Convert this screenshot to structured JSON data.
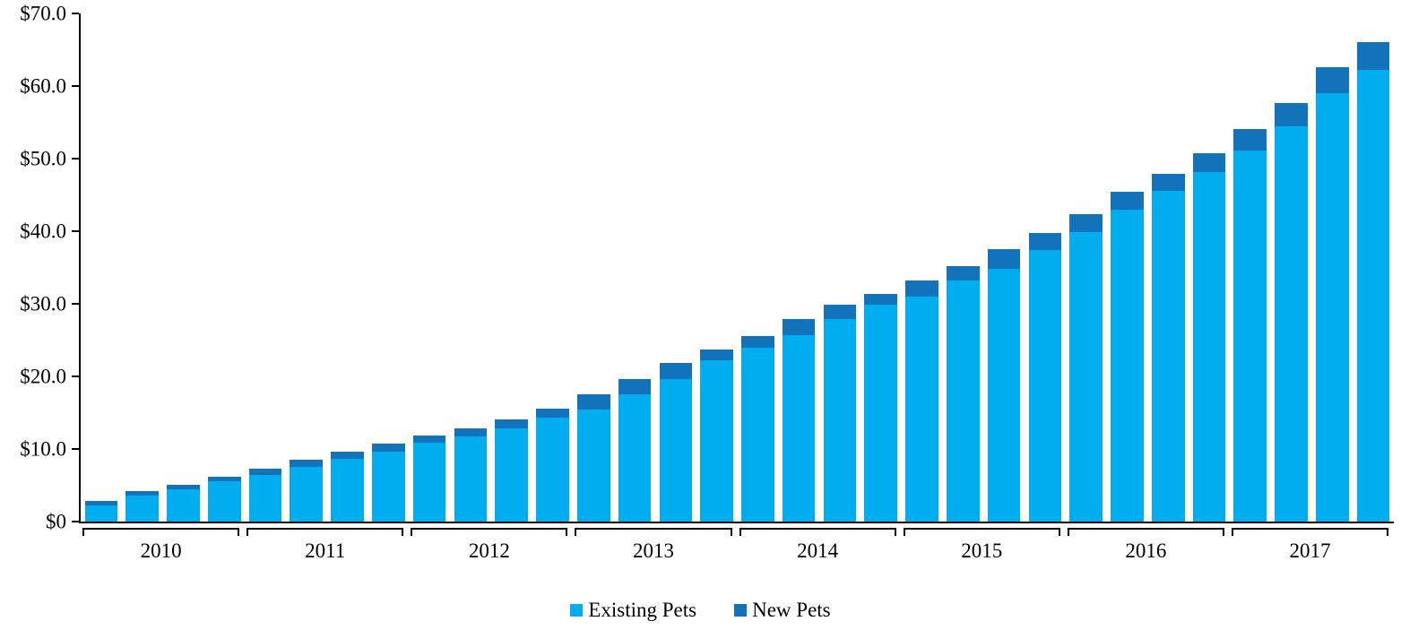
{
  "chart_data": {
    "type": "bar",
    "stacked": true,
    "title": "",
    "xlabel": "",
    "ylabel": "",
    "ylim": [
      0,
      70
    ],
    "grid": false,
    "legend_position": "bottom",
    "y_ticks": [
      {
        "label": "$70.0",
        "value": 70
      },
      {
        "label": "$60.0",
        "value": 60
      },
      {
        "label": "$50.0",
        "value": 50
      },
      {
        "label": "$40.0",
        "value": 40
      },
      {
        "label": "$30.0",
        "value": 30
      },
      {
        "label": "$20.0",
        "value": 20
      },
      {
        "label": "$10.0",
        "value": 10
      },
      {
        "label": "$0",
        "value": 0
      }
    ],
    "year_groups": [
      "2010",
      "2011",
      "2012",
      "2013",
      "2014",
      "2015",
      "2016",
      "2017"
    ],
    "bars_per_year": 4,
    "categories": [
      "2010-Q1",
      "2010-Q2",
      "2010-Q3",
      "2010-Q4",
      "2011-Q1",
      "2011-Q2",
      "2011-Q3",
      "2011-Q4",
      "2012-Q1",
      "2012-Q2",
      "2012-Q3",
      "2012-Q4",
      "2013-Q1",
      "2013-Q2",
      "2013-Q3",
      "2013-Q4",
      "2014-Q1",
      "2014-Q2",
      "2014-Q3",
      "2014-Q4",
      "2015-Q1",
      "2015-Q2",
      "2015-Q3",
      "2015-Q4",
      "2016-Q1",
      "2016-Q2",
      "2016-Q3",
      "2016-Q4",
      "2017-Q1",
      "2017-Q2",
      "2017-Q3",
      "2017-Q4"
    ],
    "series": [
      {
        "name": "Existing Pets",
        "color": "#00AEEF",
        "values": [
          2.2,
          3.6,
          4.5,
          5.5,
          6.4,
          7.5,
          8.6,
          9.6,
          10.9,
          11.7,
          12.9,
          14.3,
          15.4,
          17.5,
          19.6,
          22.2,
          24.0,
          25.7,
          27.9,
          29.9,
          31.0,
          33.2,
          34.8,
          37.4,
          39.9,
          43.0,
          45.5,
          48.1,
          51.1,
          54.5,
          59.0,
          62.2
        ]
      },
      {
        "name": "New Pets",
        "color": "#1272BA",
        "values": [
          0.7,
          0.6,
          0.6,
          0.7,
          0.9,
          1.0,
          1.0,
          1.1,
          0.9,
          1.2,
          1.2,
          1.3,
          2.1,
          2.1,
          2.3,
          1.5,
          1.5,
          2.2,
          2.0,
          1.4,
          2.2,
          2.0,
          2.7,
          2.3,
          2.4,
          2.4,
          2.4,
          2.6,
          3.0,
          3.1,
          3.6,
          3.9
        ]
      }
    ]
  },
  "legend": {
    "existing_label": "Existing Pets",
    "new_label": "New Pets"
  }
}
